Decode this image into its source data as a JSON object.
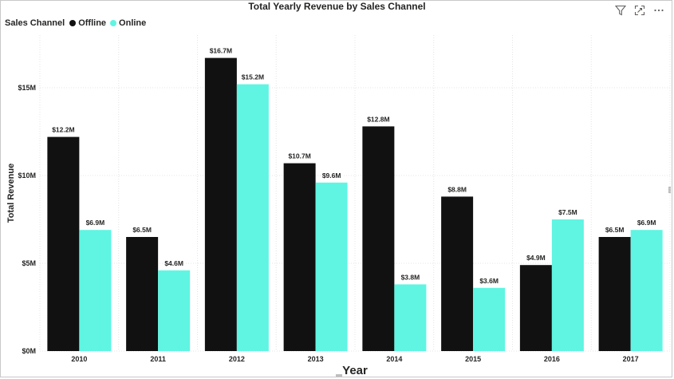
{
  "chart_data": {
    "type": "bar",
    "title": "Total Yearly Revenue by Sales Channel",
    "legend_title": "Sales Channel",
    "legend_placement": "top-left",
    "xlabel": "Year",
    "ylabel": "Total Revenue",
    "categories": [
      "2010",
      "2011",
      "2012",
      "2013",
      "2014",
      "2015",
      "2016",
      "2017"
    ],
    "series": [
      {
        "name": "Offline",
        "color": "#111111",
        "values": [
          12.2,
          6.5,
          16.7,
          10.7,
          12.8,
          8.8,
          4.9,
          6.5
        ],
        "labels": [
          "$12.2M",
          "$6.5M",
          "$16.7M",
          "$10.7M",
          "$12.8M",
          "$8.8M",
          "$4.9M",
          "$6.5M"
        ]
      },
      {
        "name": "Online",
        "color": "#5ff5e2",
        "values": [
          6.9,
          4.6,
          15.2,
          9.6,
          3.8,
          3.6,
          7.5,
          6.9
        ],
        "labels": [
          "$6.9M",
          "$4.6M",
          "$15.2M",
          "$9.6M",
          "$3.8M",
          "$3.6M",
          "$7.5M",
          "$6.9M"
        ]
      }
    ],
    "yticks": [
      {
        "value": 0,
        "label": "$0M"
      },
      {
        "value": 5,
        "label": "$5M"
      },
      {
        "value": 10,
        "label": "$10M"
      },
      {
        "value": 15,
        "label": "$15M"
      }
    ],
    "ylim": [
      0,
      18
    ],
    "y_unit": "millions USD",
    "grid": true
  },
  "toolbar": {
    "icons": [
      "filter-icon",
      "focus-mode-icon",
      "more-options-icon"
    ]
  }
}
